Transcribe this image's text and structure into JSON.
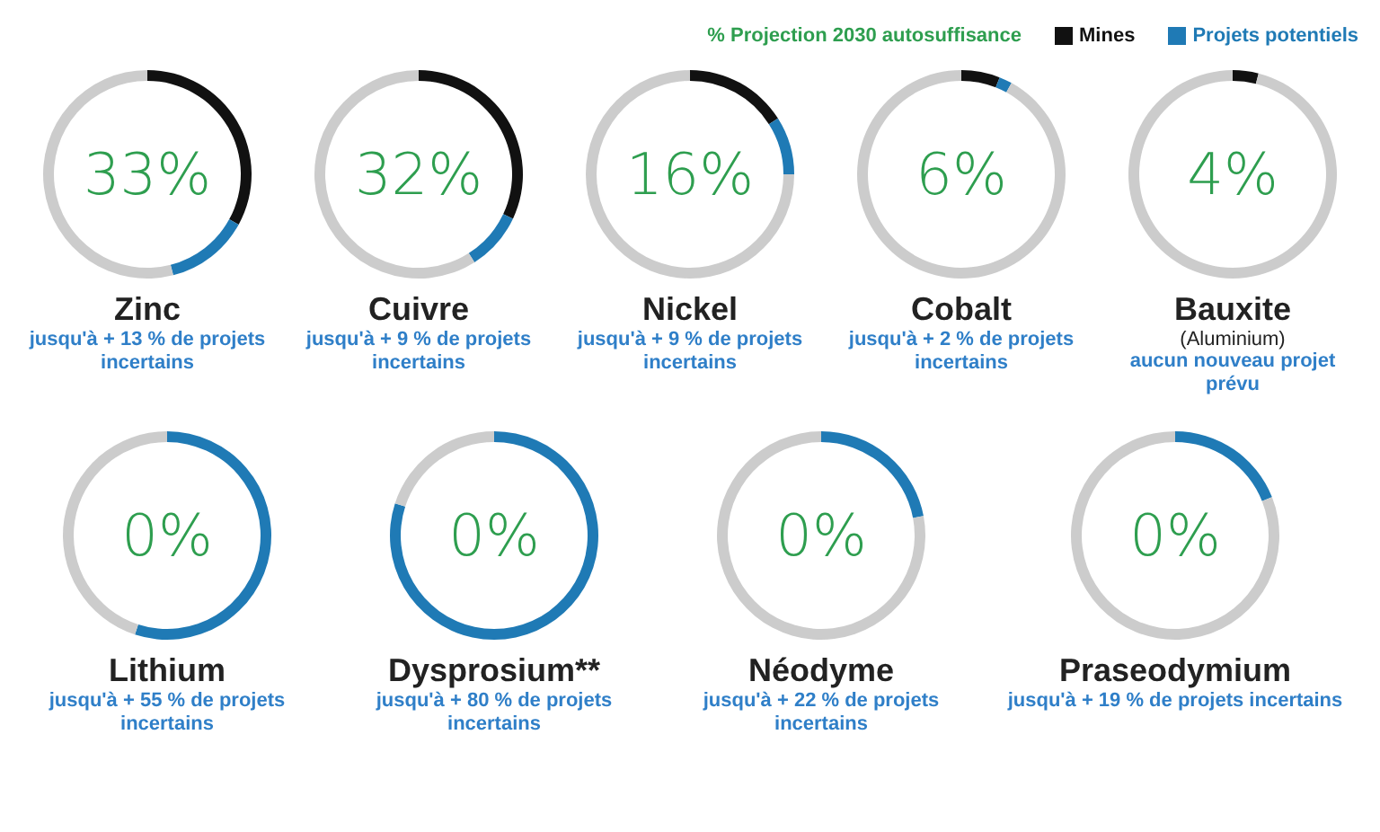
{
  "chart_data": [
    {
      "type": "donut",
      "title": "Zinc",
      "annotations": [
        "33%",
        "jusqu'à + 13 % de projets incertains"
      ],
      "categories": [
        "Mines",
        "Projets potentiels",
        null
      ],
      "values": [
        33,
        13,
        54
      ],
      "colors": [
        "#111111",
        "#1f7ab5",
        "#cccccc"
      ],
      "legend": "top right",
      "legend_title": "% Projection 2030 autosuffisance"
    },
    {
      "type": "donut",
      "title": "Cuivre",
      "annotations": [
        "32%",
        "jusqu'à + 9 % de projets incertains"
      ],
      "categories": [
        null,
        null,
        null
      ],
      "values": [
        32,
        9,
        59
      ],
      "colors": [
        "#111111",
        "#1f7ab5",
        "#cccccc"
      ]
    },
    {
      "type": "donut",
      "title": "Nickel",
      "annotations": [
        "16%",
        "jusqu'à + 9 % de projets incertains"
      ],
      "categories": [
        null,
        null,
        null
      ],
      "values": [
        16,
        9,
        75
      ],
      "colors": [
        "#111111",
        "#1f7ab5",
        "#cccccc"
      ]
    },
    {
      "type": "donut",
      "title": "Cobalt",
      "annotations": [
        "6%",
        "jusqu'à + 2 % de projets incertains"
      ],
      "categories": [
        null,
        null,
        null
      ],
      "values": [
        6,
        2,
        92
      ],
      "colors": [
        "#111111",
        "#1f7ab5",
        "#cccccc"
      ]
    },
    {
      "type": "donut",
      "title": "Bauxite",
      "subtitle": "(Aluminium)",
      "annotations": [
        "4%",
        "aucun nouveau projet prévu"
      ],
      "categories": [
        null,
        null,
        null
      ],
      "values": [
        4,
        0,
        96
      ],
      "colors": [
        "#111111",
        "#1f7ab5",
        "#cccccc"
      ]
    },
    {
      "type": "donut",
      "title": "Lithium",
      "annotations": [
        "0%",
        "jusqu'à + 55 % de projets incertains"
      ],
      "categories": [
        null,
        null,
        null
      ],
      "values": [
        0,
        55,
        45
      ],
      "colors": [
        "#111111",
        "#1f7ab5",
        "#cccccc"
      ]
    },
    {
      "type": "donut",
      "title": "Dysprosium**",
      "annotations": [
        "0%",
        "jusqu'à + 80 % de projets incertains"
      ],
      "categories": [
        null,
        null,
        null
      ],
      "values": [
        0,
        80,
        20
      ],
      "colors": [
        "#111111",
        "#1f7ab5",
        "#cccccc"
      ]
    },
    {
      "type": "donut",
      "title": "Néodyme",
      "annotations": [
        "0%",
        "jusqu'à + 22 % de projets incertains"
      ],
      "categories": [
        null,
        null,
        null
      ],
      "values": [
        0,
        22,
        78
      ],
      "colors": [
        "#111111",
        "#1f7ab5",
        "#cccccc"
      ]
    },
    {
      "type": "donut",
      "title": "Praseodymium",
      "annotations": [
        "0%",
        "jusqu'à + 19 % de projets incertains"
      ],
      "categories": [
        null,
        null,
        null
      ],
      "values": [
        0,
        19,
        81
      ],
      "colors": [
        "#111111",
        "#1f7ab5",
        "#cccccc"
      ]
    }
  ]
}
